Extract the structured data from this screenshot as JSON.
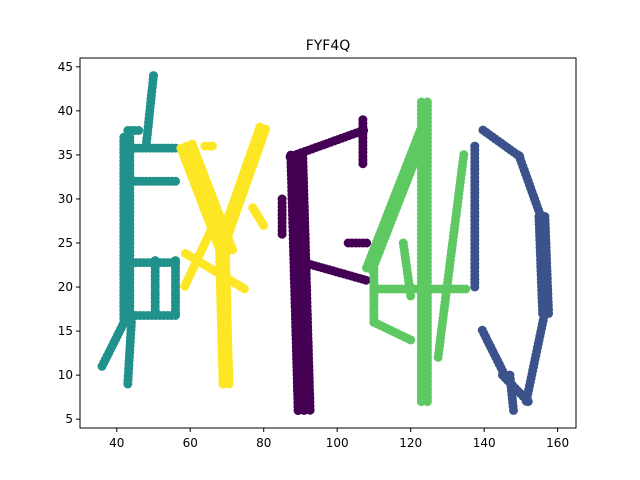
{
  "chart_data": {
    "type": "scatter",
    "title": "FYF4Q",
    "xlabel": "",
    "ylabel": "",
    "xlim": [
      30,
      165
    ],
    "ylim": [
      4,
      46
    ],
    "xticks": [
      40,
      60,
      80,
      100,
      120,
      140,
      160
    ],
    "yticks": [
      5,
      10,
      15,
      20,
      25,
      30,
      35,
      40,
      45
    ],
    "grid": false,
    "legend": "none",
    "series": [
      {
        "color": "#21918c",
        "strokes": [
          {
            "from": [
              50,
              44
            ],
            "to": [
              48,
              36
            ],
            "width": 1
          },
          {
            "from": [
              43,
              38
            ],
            "to": [
              46,
              38
            ],
            "width": 1.5
          },
          {
            "from": [
              43,
              37
            ],
            "to": [
              43,
              16
            ],
            "width": 2
          },
          {
            "from": [
              44,
              36
            ],
            "to": [
              56,
              36
            ],
            "width": 1.5
          },
          {
            "from": [
              45,
              32
            ],
            "to": [
              56,
              32
            ],
            "width": 1
          },
          {
            "from": [
              43,
              23
            ],
            "to": [
              56,
              23
            ],
            "width": 1.5
          },
          {
            "from": [
              51,
              23
            ],
            "to": [
              51,
              17
            ],
            "width": 1.5
          },
          {
            "from": [
              56,
              23
            ],
            "to": [
              56,
              17
            ],
            "width": 1
          },
          {
            "from": [
              43,
              17
            ],
            "to": [
              56,
              17
            ],
            "width": 1.5
          },
          {
            "from": [
              44,
              16
            ],
            "to": [
              43,
              9
            ],
            "width": 1
          },
          {
            "from": [
              42,
              16
            ],
            "to": [
              36,
              11
            ],
            "width": 1
          }
        ]
      },
      {
        "color": "#fde725",
        "strokes": [
          {
            "from": [
              59,
              36
            ],
            "to": [
              70,
              24
            ],
            "width": 2.5
          },
          {
            "from": [
              64,
              36
            ],
            "to": [
              66,
              36
            ],
            "width": 1
          },
          {
            "from": [
              80,
              38
            ],
            "to": [
              69,
              25
            ],
            "width": 2
          },
          {
            "from": [
              77,
              29
            ],
            "to": [
              80,
              27
            ],
            "width": 1
          },
          {
            "from": [
              69,
              25
            ],
            "to": [
              70,
              9
            ],
            "width": 2
          },
          {
            "from": [
              68,
              28
            ],
            "to": [
              59,
              20
            ],
            "width": 1.5
          },
          {
            "from": [
              59,
              24
            ],
            "to": [
              75,
              20
            ],
            "width": 1.5
          }
        ]
      },
      {
        "color": "#440154",
        "strokes": [
          {
            "from": [
              87,
              35
            ],
            "to": [
              107,
              38
            ],
            "width": 1.5
          },
          {
            "from": [
              107,
              39
            ],
            "to": [
              107,
              34
            ],
            "width": 1
          },
          {
            "from": [
              85,
              30
            ],
            "to": [
              85,
              26
            ],
            "width": 1
          },
          {
            "from": [
              89,
              35
            ],
            "to": [
              91,
              6
            ],
            "width": 2.5
          },
          {
            "from": [
              91,
              23
            ],
            "to": [
              108,
              21
            ],
            "width": 1.5
          },
          {
            "from": [
              103,
              25
            ],
            "to": [
              108,
              25
            ],
            "width": 1
          }
        ]
      },
      {
        "color": "#5ec962",
        "strokes": [
          {
            "from": [
              124,
              41
            ],
            "to": [
              124,
              7
            ],
            "width": 2
          },
          {
            "from": [
              124,
              38
            ],
            "to": [
              109,
              22
            ],
            "width": 2
          },
          {
            "from": [
              110,
              23
            ],
            "to": [
              110,
              16
            ],
            "width": 1
          },
          {
            "from": [
              110,
              20
            ],
            "to": [
              135,
              20
            ],
            "width": 1.5
          },
          {
            "from": [
              110,
              16
            ],
            "to": [
              120,
              14
            ],
            "width": 1
          },
          {
            "from": [
              135,
              35
            ],
            "to": [
              128,
              12
            ],
            "width": 1.5
          },
          {
            "from": [
              118,
              25
            ],
            "to": [
              120,
              19
            ],
            "width": 1
          }
        ]
      },
      {
        "color": "#3b528b",
        "strokes": [
          {
            "from": [
              140,
              38
            ],
            "to": [
              150,
              35
            ],
            "width": 1.5
          },
          {
            "from": [
              150,
              35
            ],
            "to": [
              156,
              28
            ],
            "width": 1.5
          },
          {
            "from": [
              156,
              28
            ],
            "to": [
              157,
              17
            ],
            "width": 2
          },
          {
            "from": [
              157,
              17
            ],
            "to": [
              152,
              7
            ],
            "width": 1.5
          },
          {
            "from": [
              152,
              7
            ],
            "to": [
              145,
              10
            ],
            "width": 1
          },
          {
            "from": [
              145,
              10
            ],
            "to": [
              139,
              15
            ],
            "width": 1.5
          },
          {
            "from": [
              138,
              36
            ],
            "to": [
              138,
              20
            ],
            "width": 1.5
          },
          {
            "from": [
              147,
              10
            ],
            "to": [
              148,
              6
            ],
            "width": 1
          }
        ]
      }
    ]
  }
}
